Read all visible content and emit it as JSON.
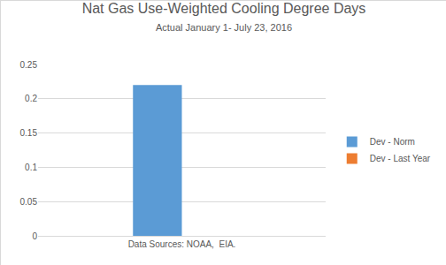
{
  "chart_data": {
    "type": "bar",
    "title": "Nat Gas Use-Weighted Cooling Degree Days",
    "subtitle": "Actual January 1- July 23, 2016",
    "categories": [
      "Data Sources: NOAA,  EIA."
    ],
    "series": [
      {
        "name": "Dev - Norm",
        "color": "#5b9bd5",
        "values": [
          0.22
        ]
      },
      {
        "name": "Dev - Last Year",
        "color": "#ed7d31",
        "values": [
          0
        ]
      }
    ],
    "ylim": [
      0,
      0.25
    ],
    "yticks": [
      0,
      0.05,
      0.1,
      0.15,
      0.2,
      0.25
    ],
    "grid": true,
    "legend": "right"
  }
}
